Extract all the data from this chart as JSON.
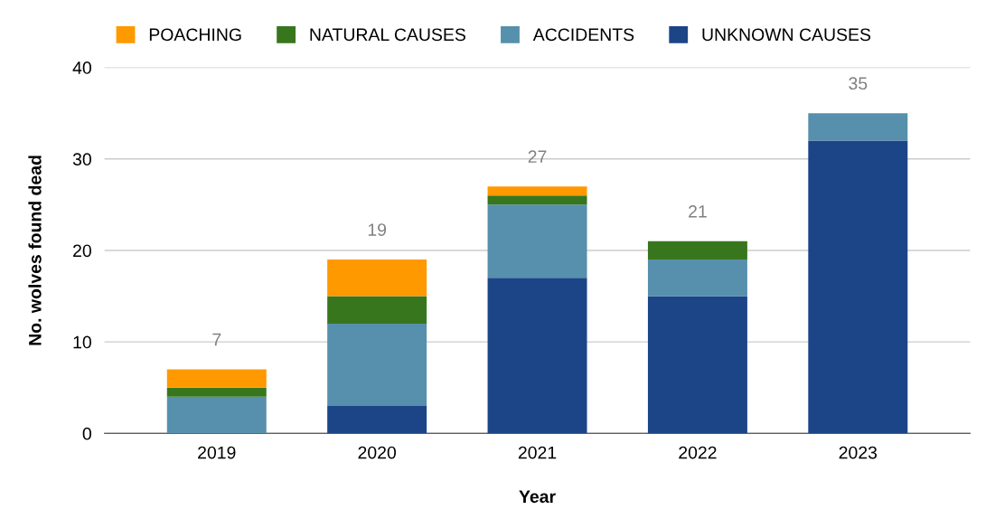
{
  "chart_data": {
    "type": "bar",
    "stacked": true,
    "xlabel": "Year",
    "ylabel": "No. wolves found dead",
    "categories": [
      "2019",
      "2020",
      "2021",
      "2022",
      "2023"
    ],
    "series": [
      {
        "name": "UNKNOWN CAUSES",
        "color": "#1c4587",
        "values": [
          0,
          3,
          17,
          15,
          32
        ]
      },
      {
        "name": "ACCIDENTS",
        "color": "#5690ad",
        "values": [
          4,
          9,
          8,
          4,
          3
        ]
      },
      {
        "name": "NATURAL CAUSES",
        "color": "#38761d",
        "values": [
          1,
          3,
          1,
          2,
          0
        ]
      },
      {
        "name": "POACHING",
        "color": "#ff9900",
        "values": [
          2,
          4,
          1,
          0,
          0
        ]
      }
    ],
    "totals": [
      "7",
      "19",
      "27",
      "21",
      "35"
    ],
    "ylim": [
      0,
      40
    ],
    "yticks": [
      0,
      10,
      20,
      30,
      40
    ],
    "grid": "y",
    "legend": "top"
  }
}
